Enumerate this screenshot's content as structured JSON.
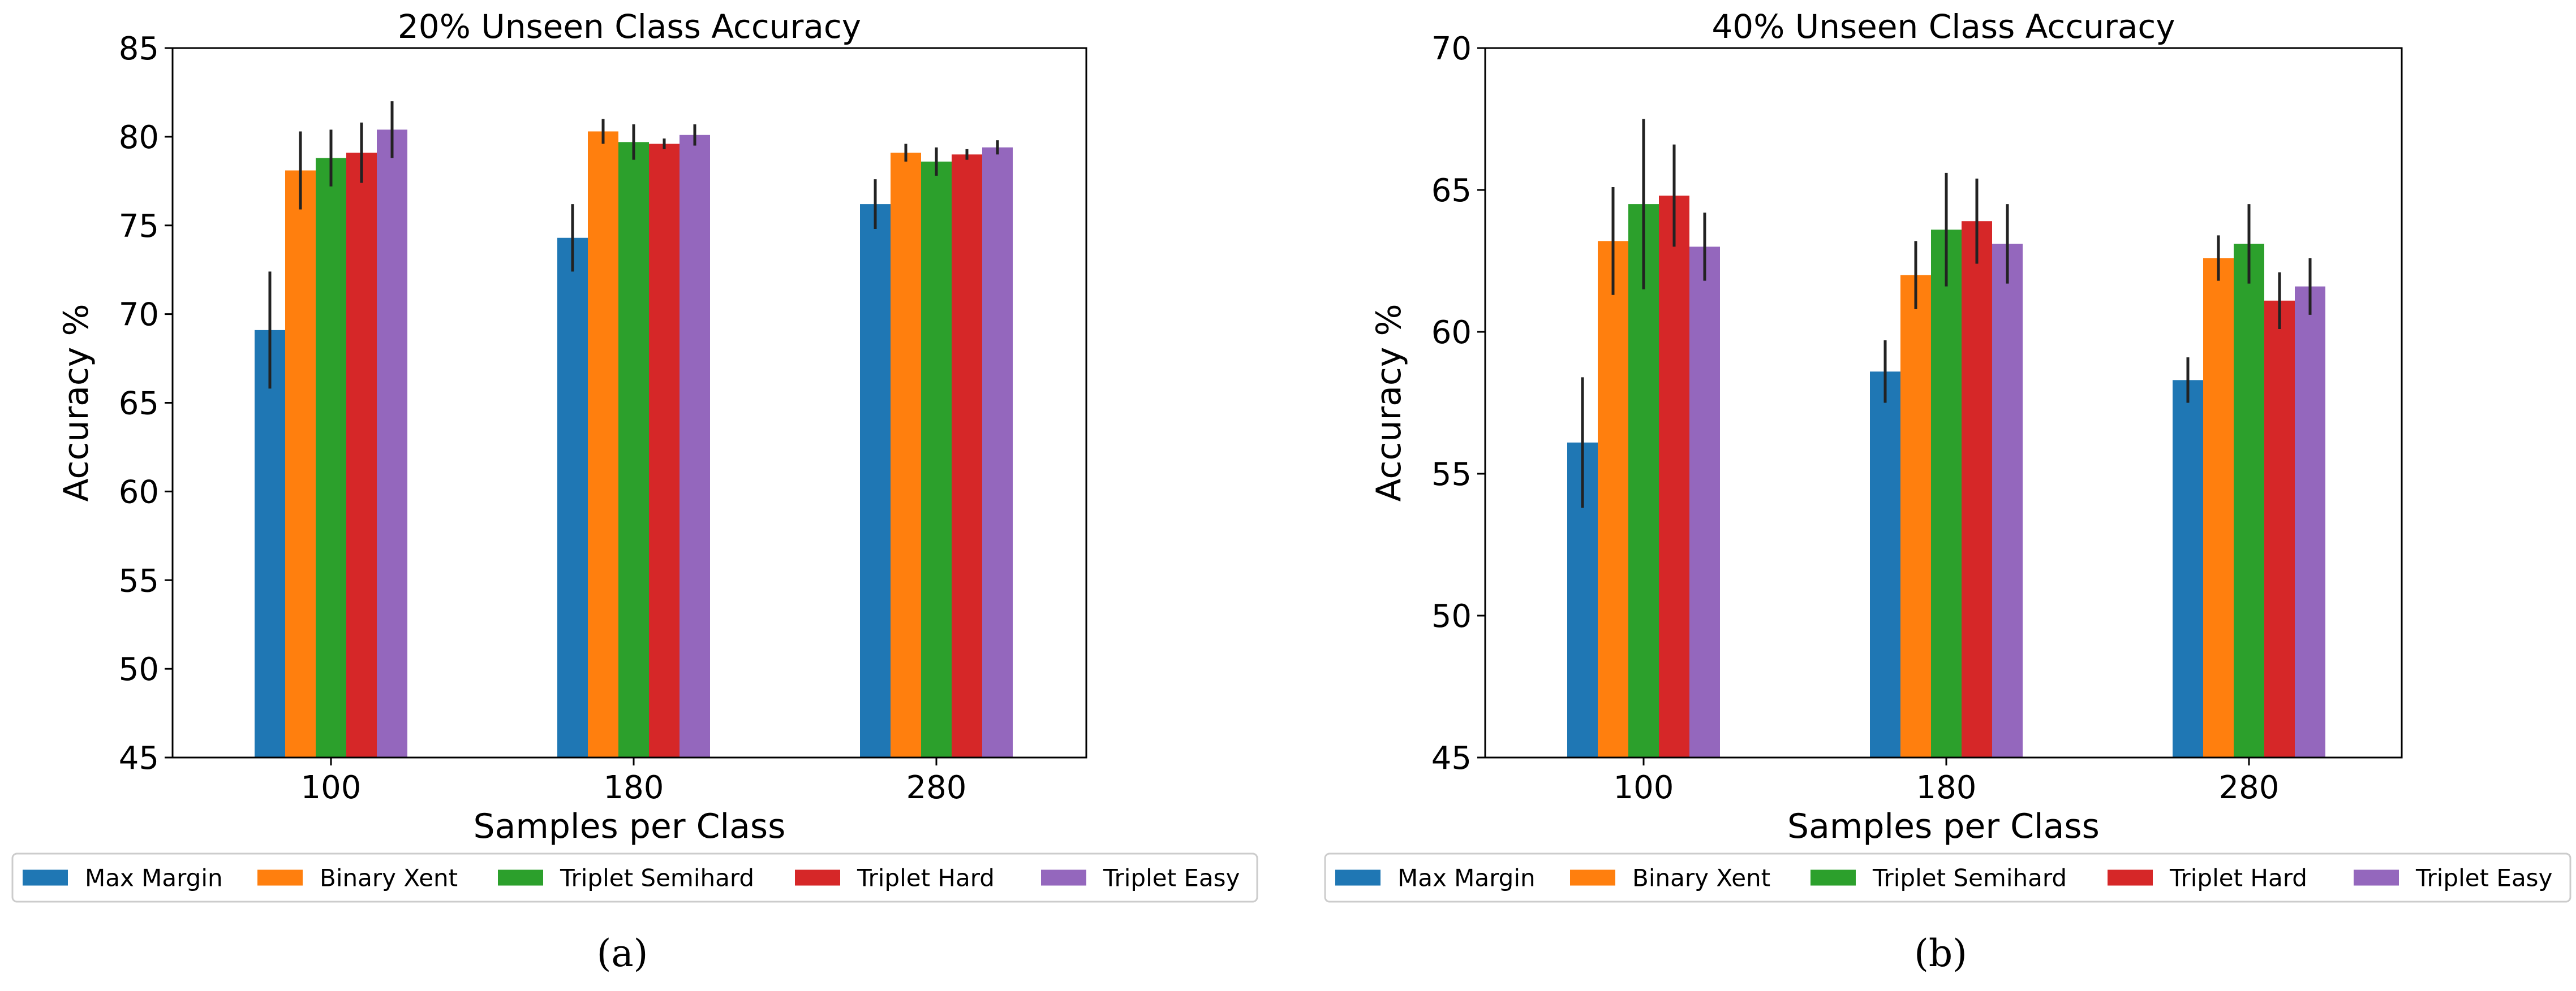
{
  "chart_data": [
    {
      "type": "bar",
      "title": "20% Unseen Class Accuracy",
      "xlabel": "Samples per Class",
      "ylabel": "Accuracy %",
      "ylim": [
        45,
        85
      ],
      "yticks": [
        45,
        50,
        55,
        60,
        65,
        70,
        75,
        80,
        85
      ],
      "categories": [
        "100",
        "180",
        "280"
      ],
      "series": [
        {
          "name": "Max Margin",
          "color": "#1f77b4",
          "values": [
            69.1,
            74.3,
            76.2
          ],
          "errors": [
            3.3,
            1.9,
            1.4
          ]
        },
        {
          "name": "Binary Xent",
          "color": "#ff7f0e",
          "values": [
            78.1,
            80.3,
            79.1
          ],
          "errors": [
            2.2,
            0.7,
            0.5
          ]
        },
        {
          "name": "Triplet Semihard",
          "color": "#2ca02c",
          "values": [
            78.8,
            79.7,
            78.6
          ],
          "errors": [
            1.6,
            1.0,
            0.8
          ]
        },
        {
          "name": "Triplet Hard",
          "color": "#d62728",
          "values": [
            79.1,
            79.6,
            79.0
          ],
          "errors": [
            1.7,
            0.3,
            0.3
          ]
        },
        {
          "name": "Triplet Easy",
          "color": "#9467bd",
          "values": [
            80.4,
            80.1,
            79.4
          ],
          "errors": [
            1.6,
            0.6,
            0.4
          ]
        }
      ],
      "legend_position": "bottom",
      "panel_label": "(a)"
    },
    {
      "type": "bar",
      "title": "40% Unseen Class Accuracy",
      "xlabel": "Samples per Class",
      "ylabel": "Accuracy %",
      "ylim": [
        45,
        70
      ],
      "yticks": [
        45,
        50,
        55,
        60,
        65,
        70
      ],
      "categories": [
        "100",
        "180",
        "280"
      ],
      "series": [
        {
          "name": "Max Margin",
          "color": "#1f77b4",
          "values": [
            56.1,
            58.6,
            58.3
          ],
          "errors": [
            2.3,
            1.1,
            0.8
          ]
        },
        {
          "name": "Binary Xent",
          "color": "#ff7f0e",
          "values": [
            63.2,
            62.0,
            62.6
          ],
          "errors": [
            1.9,
            1.2,
            0.8
          ]
        },
        {
          "name": "Triplet Semihard",
          "color": "#2ca02c",
          "values": [
            64.5,
            63.6,
            63.1
          ],
          "errors": [
            3.0,
            2.0,
            1.4
          ]
        },
        {
          "name": "Triplet Hard",
          "color": "#d62728",
          "values": [
            64.8,
            63.9,
            61.1
          ],
          "errors": [
            1.8,
            1.5,
            1.0
          ]
        },
        {
          "name": "Triplet Easy",
          "color": "#9467bd",
          "values": [
            63.0,
            63.1,
            61.6
          ],
          "errors": [
            1.2,
            1.4,
            1.0
          ]
        }
      ],
      "legend_position": "bottom",
      "panel_label": "(b)"
    }
  ]
}
